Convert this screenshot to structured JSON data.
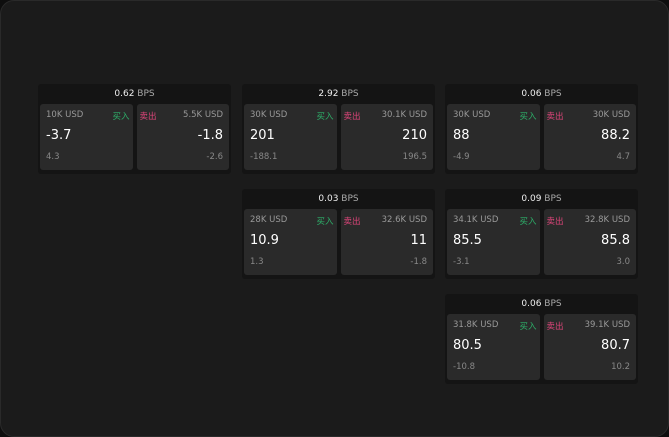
{
  "colors": {
    "buy": "#2db36b",
    "sell": "#e0457b"
  },
  "cards": [
    {
      "spread": "0.62",
      "unit": "BPS",
      "bid": {
        "size": "10K USD",
        "label": "买入",
        "price": "-3.7",
        "change": "4.3"
      },
      "ask": {
        "size": "5.5K USD",
        "label": "卖出",
        "price": "-1.8",
        "change": "-2.6"
      }
    },
    {
      "spread": "2.92",
      "unit": "BPS",
      "bid": {
        "size": "30K USD",
        "label": "买入",
        "price": "201",
        "change": "-188.1"
      },
      "ask": {
        "size": "30.1K USD",
        "label": "卖出",
        "price": "210",
        "change": "196.5"
      }
    },
    {
      "spread": "0.06",
      "unit": "BPS",
      "bid": {
        "size": "30K USD",
        "label": "买入",
        "price": "88",
        "change": "-4.9"
      },
      "ask": {
        "size": "30K USD",
        "label": "卖出",
        "price": "88.2",
        "change": "4.7"
      }
    },
    {
      "spread": "0.03",
      "unit": "BPS",
      "bid": {
        "size": "28K USD",
        "label": "买入",
        "price": "10.9",
        "change": "1.3"
      },
      "ask": {
        "size": "32.6K USD",
        "label": "卖出",
        "price": "11",
        "change": "-1.8"
      }
    },
    {
      "spread": "0.09",
      "unit": "BPS",
      "bid": {
        "size": "34.1K USD",
        "label": "买入",
        "price": "85.5",
        "change": "-3.1"
      },
      "ask": {
        "size": "32.8K USD",
        "label": "卖出",
        "price": "85.8",
        "change": "3.0"
      }
    },
    {
      "spread": "0.06",
      "unit": "BPS",
      "bid": {
        "size": "31.8K USD",
        "label": "买入",
        "price": "80.5",
        "change": "-10.8"
      },
      "ask": {
        "size": "39.1K USD",
        "label": "卖出",
        "price": "80.7",
        "change": "10.2"
      }
    }
  ]
}
